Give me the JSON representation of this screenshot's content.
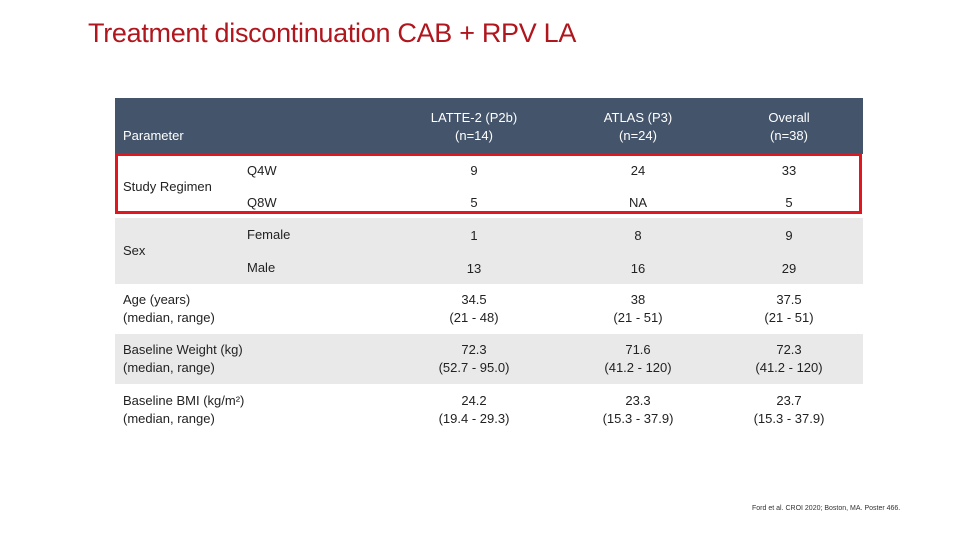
{
  "title": "Treatment discontinuation CAB + RPV LA",
  "header": {
    "parameter": "Parameter",
    "col1": {
      "line1": "LATTE-2 (P2b)",
      "line2": "(n=14)"
    },
    "col2": {
      "line1": "ATLAS (P3)",
      "line2": "(n=24)"
    },
    "col3": {
      "line1": "Overall",
      "line2": "(n=38)"
    }
  },
  "rows": {
    "study_regimen": {
      "label": "Study Regimen",
      "q4w": {
        "label": "Q4W",
        "v1": "9",
        "v2": "24",
        "v3": "33"
      },
      "q8w": {
        "label": "Q8W",
        "v1": "5",
        "v2": "NA",
        "v3": "5"
      }
    },
    "sex": {
      "label": "Sex",
      "female": {
        "label": "Female",
        "v1": "1",
        "v2": "8",
        "v3": "9"
      },
      "male": {
        "label": "Male",
        "v1": "13",
        "v2": "16",
        "v3": "29"
      }
    },
    "age": {
      "label1": "Age (years)",
      "label2": "(median, range)",
      "v1": {
        "a": "34.5",
        "b": "(21 - 48)"
      },
      "v2": {
        "a": "38",
        "b": "(21 - 51)"
      },
      "v3": {
        "a": "37.5",
        "b": "(21 - 51)"
      }
    },
    "weight": {
      "label1": "Baseline Weight (kg)",
      "label2": "(median, range)",
      "v1": {
        "a": "72.3",
        "b": "(52.7 - 95.0)"
      },
      "v2": {
        "a": "71.6",
        "b": "(41.2 - 120)"
      },
      "v3": {
        "a": "72.3",
        "b": "(41.2 - 120)"
      }
    },
    "bmi": {
      "label1": "Baseline BMI (kg/m²)",
      "label2": "(median, range)",
      "v1": {
        "a": "24.2",
        "b": "(19.4 - 29.3)"
      },
      "v2": {
        "a": "23.3",
        "b": "(15.3 - 37.9)"
      },
      "v3": {
        "a": "23.7",
        "b": "(15.3 - 37.9)"
      }
    }
  },
  "footer": "Ford et al. CROI 2020; Boston, MA. Poster 466.",
  "colors": {
    "title": "#b0161d",
    "header_bg": "#44546a",
    "band": "#e9e9e9",
    "highlight": "#e0171e"
  }
}
